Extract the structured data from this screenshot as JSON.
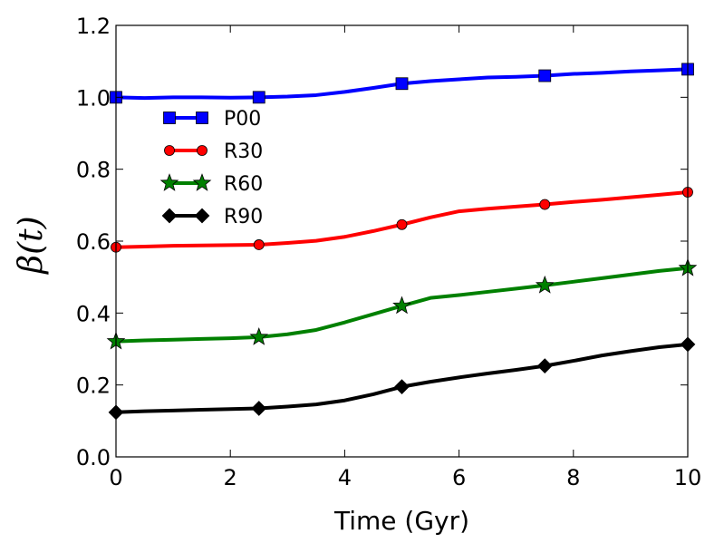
{
  "chart_data": {
    "type": "line",
    "title": "",
    "xlabel": "Time (Gyr)",
    "ylabel": "β(t)",
    "xlim": [
      0,
      10
    ],
    "ylim": [
      0.0,
      1.2
    ],
    "xticks": [
      0,
      2,
      4,
      6,
      8,
      10
    ],
    "xtick_labels": [
      "0",
      "2",
      "4",
      "6",
      "8",
      "10"
    ],
    "yticks": [
      0.0,
      0.2,
      0.4,
      0.6,
      0.8,
      1.0,
      1.2
    ],
    "ytick_labels": [
      "0.0",
      "0.2",
      "0.4",
      "0.6",
      "0.8",
      "1.0",
      "1.2"
    ],
    "grid": false,
    "legend_position": "upper-left",
    "series": [
      {
        "name": "P00",
        "color": "#0000ff",
        "marker": "square",
        "x": [
          0,
          0.5,
          1,
          1.5,
          2,
          2.5,
          3,
          3.5,
          4,
          4.5,
          5,
          5.5,
          6,
          6.5,
          7,
          7.5,
          8,
          8.5,
          9,
          9.5,
          10
        ],
        "y": [
          1.0,
          0.998,
          1.0,
          1.0,
          0.999,
          1.0,
          1.002,
          1.006,
          1.015,
          1.026,
          1.038,
          1.045,
          1.05,
          1.055,
          1.057,
          1.06,
          1.065,
          1.068,
          1.072,
          1.075,
          1.078
        ],
        "marker_x": [
          0,
          2.5,
          5,
          7.5,
          10
        ],
        "marker_y": [
          1.0,
          1.0,
          1.038,
          1.06,
          1.078
        ]
      },
      {
        "name": "R30",
        "color": "#ff0000",
        "marker": "circle",
        "x": [
          0,
          0.5,
          1,
          1.5,
          2,
          2.5,
          3,
          3.5,
          4,
          4.5,
          5,
          5.5,
          6,
          6.5,
          7,
          7.5,
          8,
          8.5,
          9,
          9.5,
          10
        ],
        "y": [
          0.583,
          0.585,
          0.587,
          0.588,
          0.589,
          0.59,
          0.595,
          0.601,
          0.612,
          0.628,
          0.646,
          0.666,
          0.683,
          0.69,
          0.696,
          0.702,
          0.709,
          0.715,
          0.722,
          0.729,
          0.736
        ],
        "marker_x": [
          0,
          2.5,
          5,
          7.5,
          10
        ],
        "marker_y": [
          0.583,
          0.59,
          0.646,
          0.702,
          0.736
        ]
      },
      {
        "name": "R60",
        "color": "#008000",
        "marker": "star",
        "x": [
          0,
          0.5,
          1,
          1.5,
          2,
          2.5,
          3,
          3.5,
          4,
          4.5,
          5,
          5.5,
          6,
          6.5,
          7,
          7.5,
          8,
          8.5,
          9,
          9.5,
          10
        ],
        "y": [
          0.321,
          0.324,
          0.326,
          0.328,
          0.33,
          0.333,
          0.341,
          0.353,
          0.374,
          0.397,
          0.42,
          0.442,
          0.45,
          0.459,
          0.468,
          0.477,
          0.487,
          0.497,
          0.507,
          0.517,
          0.525
        ],
        "marker_x": [
          0,
          2.5,
          5,
          7.5,
          10
        ],
        "marker_y": [
          0.321,
          0.333,
          0.42,
          0.477,
          0.525
        ]
      },
      {
        "name": "R90",
        "color": "#000000",
        "marker": "diamond",
        "x": [
          0,
          0.5,
          1,
          1.5,
          2,
          2.5,
          3,
          3.5,
          4,
          4.5,
          5,
          5.5,
          6,
          6.5,
          7,
          7.5,
          8,
          8.5,
          9,
          9.5,
          10
        ],
        "y": [
          0.124,
          0.127,
          0.129,
          0.131,
          0.133,
          0.135,
          0.14,
          0.146,
          0.157,
          0.174,
          0.195,
          0.209,
          0.221,
          0.232,
          0.242,
          0.253,
          0.267,
          0.282,
          0.294,
          0.305,
          0.313
        ],
        "marker_x": [
          0,
          2.5,
          5,
          7.5,
          10
        ],
        "marker_y": [
          0.124,
          0.135,
          0.195,
          0.253,
          0.313
        ]
      }
    ]
  }
}
